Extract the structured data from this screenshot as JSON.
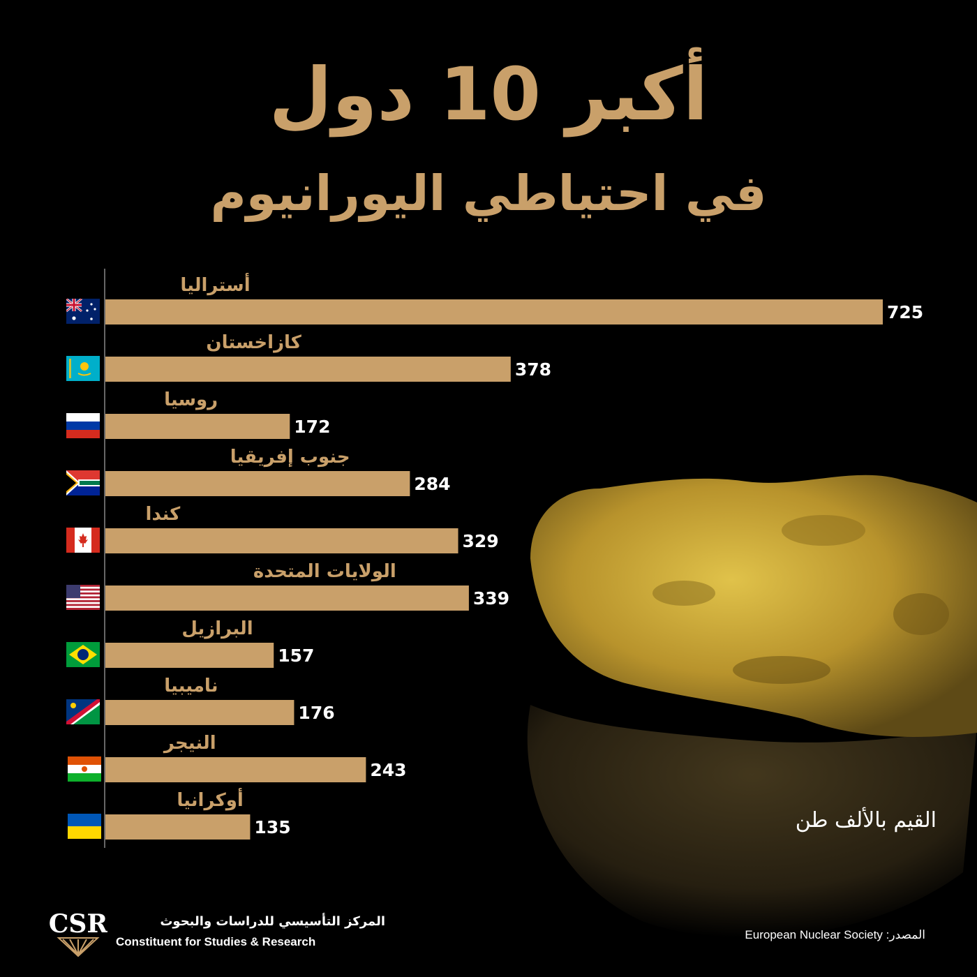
{
  "header": {
    "title": "أكبر 10 دول",
    "subtitle": "في احتياطي اليورانيوم"
  },
  "unit_note": "القيم بالألف طن",
  "logo": {
    "mark_text": "CSR",
    "name_ar": "المركز التأسيسي للدراسات والبحوث",
    "name_en": "Constituent for Studies & Research"
  },
  "source": {
    "label": "المصدر:",
    "value": "European Nuclear Society"
  },
  "colors": {
    "bar": "#c9a06a",
    "title": "#c9a06a",
    "background": "#000000",
    "text": "#ffffff"
  },
  "chart_data": {
    "type": "bar",
    "orientation": "horizontal",
    "categories": [
      "أستراليا",
      "كازاخستان",
      "روسيا",
      "جنوب إفريقيا",
      "كندا",
      "الولايات المتحدة",
      "البرازيل",
      "ناميبيا",
      "النيجر",
      "أوكرانيا"
    ],
    "values": [
      725,
      378,
      172,
      284,
      329,
      339,
      157,
      176,
      243,
      135
    ],
    "flag_icons": [
      "australia-flag-icon",
      "kazakhstan-flag-icon",
      "russia-flag-icon",
      "south-africa-flag-icon",
      "canada-flag-icon",
      "usa-flag-icon",
      "brazil-flag-icon",
      "namibia-flag-icon",
      "niger-flag-icon",
      "ukraine-flag-icon"
    ],
    "xlim": [
      0,
      725
    ],
    "grid": false,
    "legend": "none"
  }
}
